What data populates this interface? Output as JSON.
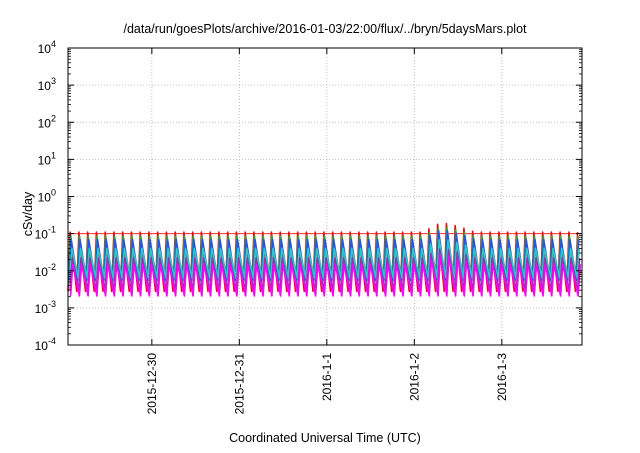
{
  "chart_data": {
    "type": "line",
    "title": "/data/run/goesPlots/archive/2016-01-03/22:00/flux/../bryn/5daysMars.plot",
    "xlabel": "Coordinated Universal Time (UTC)",
    "ylabel": "cSv/day",
    "y_scale": "log",
    "ylim": [
      0.0001,
      10000
    ],
    "y_ticks": [
      {
        "value": 0.0001,
        "base": "10",
        "exp": "-4"
      },
      {
        "value": 0.001,
        "base": "10",
        "exp": "-3"
      },
      {
        "value": 0.01,
        "base": "10",
        "exp": "-2"
      },
      {
        "value": 0.1,
        "base": "10",
        "exp": "-1"
      },
      {
        "value": 1,
        "base": "10",
        "exp": "0"
      },
      {
        "value": 10,
        "base": "10",
        "exp": "1"
      },
      {
        "value": 100,
        "base": "10",
        "exp": "2"
      },
      {
        "value": 1000,
        "base": "10",
        "exp": "3"
      },
      {
        "value": 10000,
        "base": "10",
        "exp": "4"
      }
    ],
    "x_range": [
      "2015-12-29T01:00",
      "2016-01-03T22:00"
    ],
    "x_ticks": [
      {
        "value": "2015-12-30T00:00",
        "label": "2015-12-30"
      },
      {
        "value": "2015-12-31T00:00",
        "label": "2015-12-31"
      },
      {
        "value": "2016-01-01T00:00",
        "label": "2016-1-1"
      },
      {
        "value": "2016-01-02T00:00",
        "label": "2016-1-2"
      },
      {
        "value": "2016-01-03T00:00",
        "label": "2016-1-3"
      }
    ],
    "grid": true,
    "reference_level": {
      "value": 0.1,
      "color": "#ff2a2a"
    },
    "pulse_period_hours": 2.4,
    "series": [
      {
        "color": "#e01010",
        "peak": 0.11,
        "trough": 0.0028
      },
      {
        "color": "#33aa33",
        "peak": 0.085,
        "trough": 0.004
      },
      {
        "color": "#2255ee",
        "peak": 0.07,
        "trough": 0.0055
      },
      {
        "color": "#22cccc",
        "peak": 0.04,
        "trough": 0.0065
      },
      {
        "color": "#9933aa",
        "peak": 0.022,
        "trough": 0.003
      },
      {
        "color": "#ff00ff",
        "peak": 0.015,
        "trough": 0.0021
      }
    ],
    "enhancement": {
      "start": "2016-01-02T02:00",
      "peak": "2016-01-02T07:00",
      "end": "2016-01-02T16:00",
      "max_value": 0.2
    }
  }
}
